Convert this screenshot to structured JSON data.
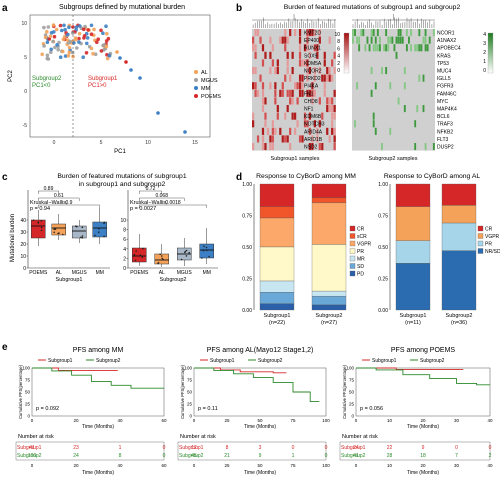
{
  "panels": {
    "a": {
      "letter": "a",
      "title": "Subgroups defined by mutational burden",
      "xlabel": "PC1",
      "ylabel": "PC2",
      "xticks": [
        "0",
        "5",
        "10",
        "15"
      ],
      "yticks": [
        "-5",
        "0",
        "5",
        "10"
      ],
      "label_sub2": [
        "Subgroup2",
        "PC1<0"
      ],
      "label_sub1": [
        "Subgroup1",
        "PC1>0"
      ],
      "legend": [
        {
          "name": "AL",
          "color": "#f4a259"
        },
        {
          "name": "MGUS",
          "color": "#a0a0a0"
        },
        {
          "name": "MM",
          "color": "#3c7fc4"
        },
        {
          "name": "POEMS",
          "color": "#d62728"
        }
      ]
    },
    "b": {
      "letter": "b",
      "title": "Burden of featured mutations of subgroup1 and subgroup2",
      "left_genes": [
        "KMT2D",
        "EP400",
        "RUNX1",
        "SOX9",
        "KDM5A",
        "NCOR2",
        "PRKD2",
        "PI4KA",
        "FN1",
        "CHD8",
        "NF1",
        "KDM6B",
        "NOTCH3",
        "ARID4A",
        "ARID1B",
        "NSD2"
      ],
      "right_genes": [
        "NCOR1",
        "A1NAX2",
        "APOBEC4",
        "KRAS",
        "TP53",
        "MUC4",
        "IGLL5",
        "FGFR3",
        "FAM46C",
        "MYC",
        "MAP4K4",
        "BCL6",
        "TRAF3",
        "NFKB2",
        "FLT3",
        "DUSP2"
      ],
      "left_scale": [
        "10",
        "8",
        "6",
        "4",
        "2",
        "0"
      ],
      "right_scale": [
        "4",
        "3",
        "2",
        "1",
        "0"
      ],
      "xlabel_left": "Subgroup1 samples",
      "xlabel_right": "Subgroup2 samples"
    },
    "c": {
      "letter": "c",
      "title": [
        "Burden of featured mutations of subgroup1",
        "in subgroup1 and subgroup2"
      ],
      "ylabel": "Mutational burden",
      "left": {
        "kw": [
          "Kruskal−Wallis,",
          "p = 0.94"
        ],
        "pvals": [
          "0.89",
          "0.61",
          "0.9"
        ],
        "cats": [
          "POEMS",
          "AL",
          "MGUS",
          "MM"
        ],
        "yticks": [
          "0",
          "10",
          "20",
          "30",
          "40"
        ],
        "xlabel": "Subgroup1"
      },
      "right": {
        "kw": [
          "Kruskal−Wallis,",
          "p = 0.0027"
        ],
        "pvals": [
          "0.72",
          "0.068",
          "0.0018"
        ],
        "cats": [
          "POEMS",
          "AL",
          "MGUS",
          "MM"
        ],
        "yticks": [
          "0",
          "2",
          "4",
          "6",
          "8",
          "10"
        ],
        "xlabel": "Subgroup2"
      },
      "box_colors": [
        "#d62728",
        "#f4a259",
        "#a8b8c8",
        "#3c7fc4"
      ]
    },
    "d": {
      "letter": "d",
      "mm": {
        "title": "Response to CyBorD among MM",
        "yticks": [
          "0.00",
          "0.25",
          "0.50",
          "0.75",
          "1.00"
        ],
        "bars": [
          {
            "label": "Subgroup1",
            "n": "(n=22)"
          },
          {
            "label": "Subgroup2",
            "n": "(n=27)"
          }
        ],
        "legend": [
          {
            "name": "CR",
            "color": "#d62728"
          },
          {
            "name": "sCR",
            "color": "#f0562a"
          },
          {
            "name": "VGPR",
            "color": "#fca86a"
          },
          {
            "name": "PR",
            "color": "#fff8c8"
          },
          {
            "name": "MR",
            "color": "#c8e6f2"
          },
          {
            "name": "SD",
            "color": "#6aa8d8"
          },
          {
            "name": "PD",
            "color": "#2b5fa8"
          }
        ]
      },
      "al": {
        "title": "Response to CyBorD among AL",
        "yticks": [
          "0.00",
          "0.25",
          "0.50",
          "0.75",
          "1.00"
        ],
        "bars": [
          {
            "label": "Subgroup1",
            "n": "(n=11)"
          },
          {
            "label": "Subgroup2",
            "n": "(n=36)"
          }
        ],
        "legend": [
          {
            "name": "CR",
            "color": "#d62728"
          },
          {
            "name": "VGPR",
            "color": "#f4a259"
          },
          {
            "name": "PR",
            "color": "#a6d4e8"
          },
          {
            "name": "NR/SD",
            "color": "#2b6cb0"
          }
        ]
      }
    },
    "e": {
      "letter": "e",
      "plots": [
        {
          "title": "PFS among MM",
          "p": "p = 0.092",
          "xticks": [
            "0",
            "20",
            "40",
            "60"
          ],
          "yticks": [
            "0",
            "25",
            "50",
            "75",
            "100"
          ],
          "risk": {
            "sub1": [
              "41",
              "23",
              "1",
              "0"
            ],
            "sub2": [
              "106",
              "24",
              "8",
              "0"
            ]
          }
        },
        {
          "title": "PFS among AL(Mayo12 Stage1,2)",
          "p": "p = 0.11",
          "xticks": [
            "0",
            "25",
            "50",
            "75",
            "100"
          ],
          "yticks": [
            "0",
            "25",
            "50",
            "75",
            "100"
          ],
          "risk": {
            "sub1": [
              "12",
              "8",
              "3",
              "0",
              "0"
            ],
            "sub2": [
              "45",
              "21",
              "9",
              "1",
              "0"
            ]
          }
        },
        {
          "title": "PFS among POEMS",
          "p": "p = 0.056",
          "xticks": [
            "0",
            "10",
            "20",
            "30",
            "40"
          ],
          "yticks": [
            "0",
            "25",
            "50",
            "75",
            "100"
          ],
          "risk": {
            "sub1": [
              "24",
              "22",
              "9",
              "0",
              "0"
            ],
            "sub2": [
              "41",
              "28",
              "18",
              "7",
              "2"
            ]
          }
        }
      ],
      "legend_sub1": "Subgroup1",
      "legend_sub2": "Subgroup2",
      "ylabel": "Cumulative PFS(percentage)",
      "xlabel": "Time (Months)",
      "risk_title": "Number at risk",
      "risk_label_sub1": "Subgroup1",
      "risk_label_sub2": "Subgroup2",
      "sub1_color": "#d62728",
      "sub2_color": "#2a8a2a"
    }
  },
  "chart_data": [
    {
      "type": "bar",
      "title": "Response to CyBorD among MM",
      "categories": [
        "Subgroup1",
        "Subgroup2"
      ],
      "series": [
        {
          "name": "CR",
          "values": [
            0.18,
            0.11
          ]
        },
        {
          "name": "sCR",
          "values": [
            0.09,
            0.04
          ]
        },
        {
          "name": "VGPR",
          "values": [
            0.23,
            0.33
          ]
        },
        {
          "name": "PR",
          "values": [
            0.27,
            0.37
          ]
        },
        {
          "name": "MR",
          "values": [
            0.09,
            0.04
          ]
        },
        {
          "name": "SD",
          "values": [
            0.09,
            0.07
          ]
        },
        {
          "name": "PD",
          "values": [
            0.05,
            0.04
          ]
        }
      ],
      "ylim": [
        0,
        1
      ]
    },
    {
      "type": "bar",
      "title": "Response to CyBorD among AL",
      "categories": [
        "Subgroup1",
        "Subgroup2"
      ],
      "series": [
        {
          "name": "CR",
          "values": [
            0.18,
            0.17
          ]
        },
        {
          "name": "VGPR",
          "values": [
            0.27,
            0.14
          ]
        },
        {
          "name": "PR",
          "values": [
            0.18,
            0.22
          ]
        },
        {
          "name": "NR/SD",
          "values": [
            0.37,
            0.47
          ]
        }
      ],
      "ylim": [
        0,
        1
      ]
    }
  ]
}
